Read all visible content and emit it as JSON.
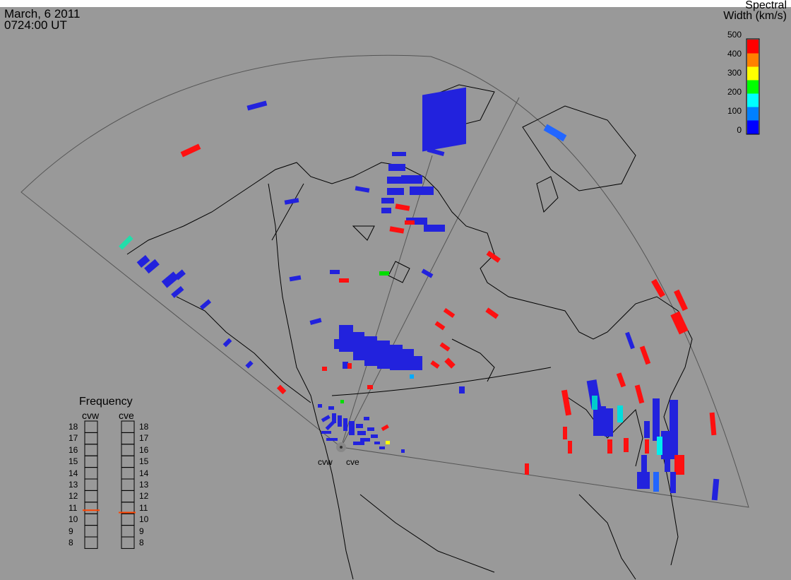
{
  "header": {
    "date": "March, 6 2011",
    "time": "0724:00 UT"
  },
  "colorbar": {
    "title_line1": "Spectral",
    "title_line2": "Width (km/s)",
    "ticks": [
      "500",
      "400",
      "300",
      "200",
      "100",
      "0"
    ],
    "colors": [
      "#0000ff",
      "#0080ff",
      "#00ffff",
      "#00ff00",
      "#ffff00",
      "#ff8000",
      "#ff0000"
    ]
  },
  "radars": {
    "west": "cvw",
    "east": "cve"
  },
  "frequency_panel": {
    "title": "Frequency",
    "col_west": "cvw",
    "col_east": "cve",
    "levels": [
      "18",
      "17",
      "16",
      "15",
      "14",
      "13",
      "12",
      "11",
      "10",
      "9",
      "8"
    ],
    "cvw_value_mhz": 10.8,
    "cve_value_mhz": 10.6,
    "indicator_color": "#ff4400"
  }
}
